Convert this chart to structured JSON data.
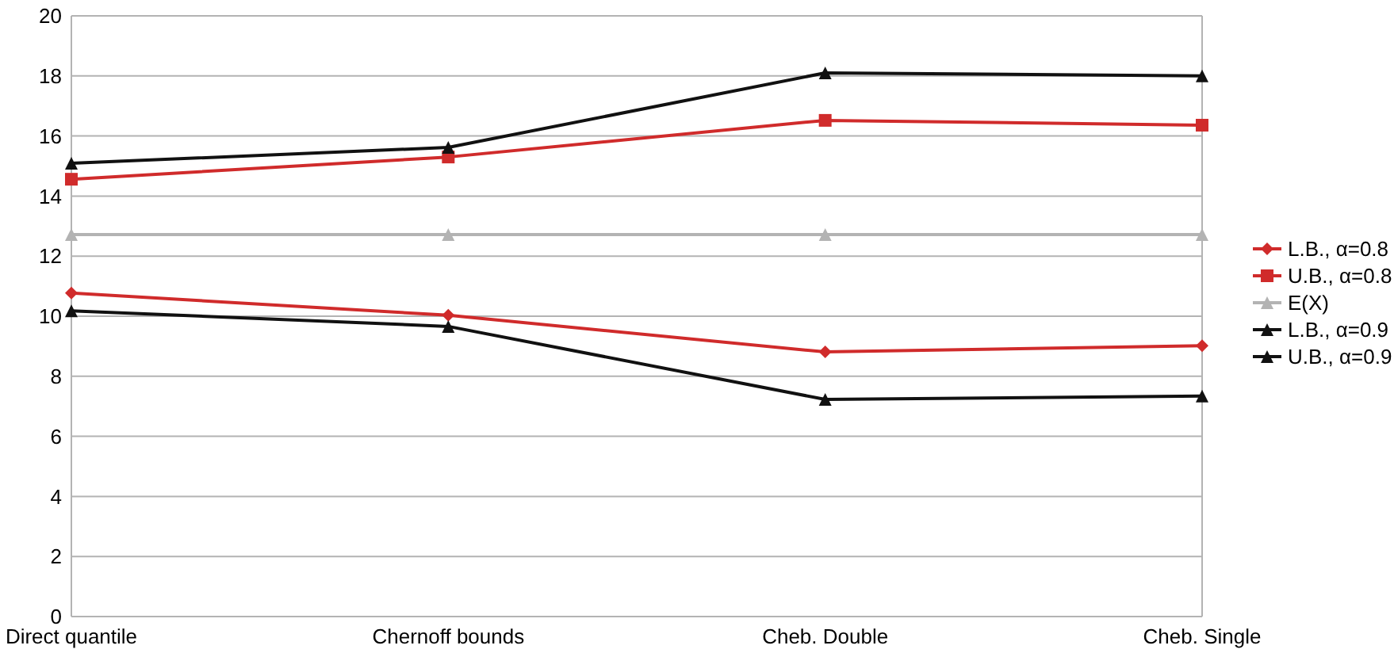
{
  "chart_data": {
    "type": "line",
    "categories": [
      "Direct quantile",
      "Chernoff bounds",
      "Cheb. Double",
      "Cheb. Single"
    ],
    "series": [
      {
        "name": "L.B., α=0.8",
        "color": "#d02b2b",
        "marker": "diamond",
        "values": [
          10.77,
          10.03,
          8.81,
          9.02
        ]
      },
      {
        "name": "U.B., α=0.8",
        "color": "#d02b2b",
        "marker": "square",
        "values": [
          14.56,
          15.3,
          16.52,
          16.36
        ]
      },
      {
        "name": "E(X)",
        "color": "#b3b3b3",
        "marker": "triangle",
        "values": [
          12.72,
          12.72,
          12.72,
          12.72
        ]
      },
      {
        "name": "L.B., α=0.9",
        "color": "#111111",
        "marker": "triangle",
        "values": [
          10.18,
          9.66,
          7.23,
          7.34
        ]
      },
      {
        "name": "U.B., α=0.9",
        "color": "#111111",
        "marker": "triangle",
        "values": [
          15.09,
          15.62,
          18.1,
          18.0
        ]
      }
    ],
    "ylim": [
      0,
      20
    ],
    "yticks": [
      0,
      2,
      4,
      6,
      8,
      10,
      12,
      14,
      16,
      18,
      20
    ],
    "grid": "y",
    "legend": "right"
  }
}
